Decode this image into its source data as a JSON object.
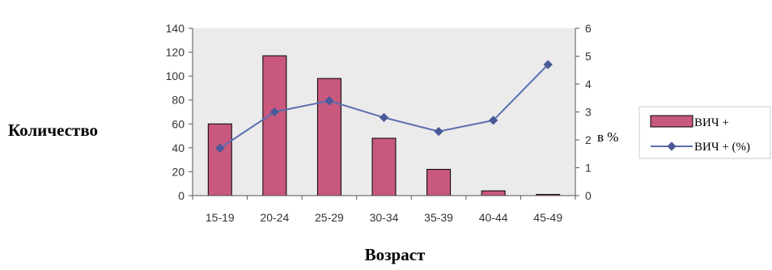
{
  "chart_data": {
    "type": "bar",
    "categories": [
      "15-19",
      "20-24",
      "25-29",
      "30-34",
      "35-39",
      "40-44",
      "45-49"
    ],
    "series": [
      {
        "name": "ВИЧ +",
        "type": "bar",
        "axis": "left",
        "values": [
          60,
          117,
          98,
          48,
          22,
          4,
          1
        ],
        "color": "#c8587e"
      },
      {
        "name": "ВИЧ + (%)",
        "type": "line",
        "axis": "right",
        "values": [
          1.7,
          3.0,
          3.4,
          2.8,
          2.3,
          2.7,
          4.7
        ],
        "color": "#5b6fb0"
      }
    ],
    "xlabel": "Возраст",
    "ylabel_left": "Количество",
    "ylabel_right": "в %",
    "ylim_left": [
      0,
      140
    ],
    "yticks_left": [
      0,
      20,
      40,
      60,
      80,
      100,
      120,
      140
    ],
    "ylim_right": [
      0,
      6
    ],
    "yticks_right": [
      0,
      1,
      2,
      3,
      4,
      5,
      6
    ],
    "grid": false,
    "plot_background": "#ebebeb",
    "legend_position": "right"
  }
}
